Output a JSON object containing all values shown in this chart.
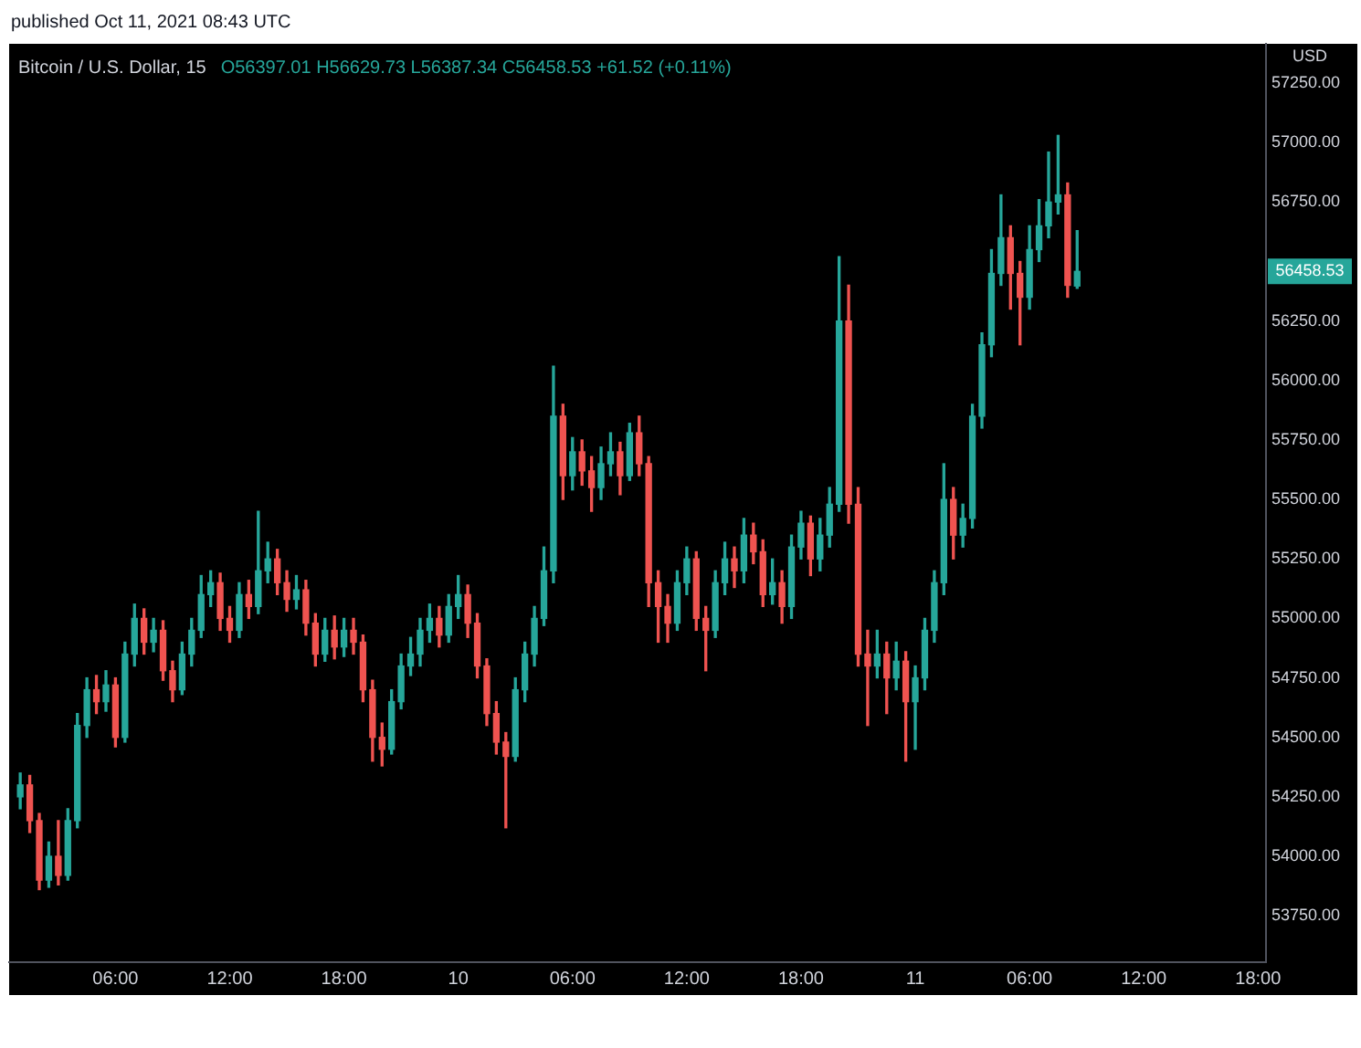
{
  "chart_data": {
    "type": "candlestick",
    "title": "Bitcoin / U.S. Dollar, 15",
    "ylabel": "USD",
    "annotations": [
      "published Oct 11, 2021 08:43 UTC",
      "O56397.01 H56629.73 L56387.34 C56458.53 +61.52 (+0.11%)",
      "56458.53"
    ],
    "x": [
      "2021-10-09T01:00",
      "2021-10-09T01:30",
      "2021-10-09T02:00",
      "2021-10-09T02:30",
      "2021-10-09T03:00",
      "2021-10-09T03:30",
      "2021-10-09T04:00",
      "2021-10-09T04:30",
      "2021-10-09T05:00",
      "2021-10-09T05:30",
      "2021-10-09T06:00",
      "2021-10-09T06:30",
      "2021-10-09T07:00",
      "2021-10-09T07:30",
      "2021-10-09T08:00",
      "2021-10-09T08:30",
      "2021-10-09T09:00",
      "2021-10-09T09:30",
      "2021-10-09T10:00",
      "2021-10-09T10:30",
      "2021-10-09T11:00",
      "2021-10-09T11:30",
      "2021-10-09T12:00",
      "2021-10-09T12:30",
      "2021-10-09T13:00",
      "2021-10-09T13:30",
      "2021-10-09T14:00",
      "2021-10-09T14:30",
      "2021-10-09T15:00",
      "2021-10-09T15:30",
      "2021-10-09T16:00",
      "2021-10-09T16:30",
      "2021-10-09T17:00",
      "2021-10-09T17:30",
      "2021-10-09T18:00",
      "2021-10-09T18:30",
      "2021-10-09T19:00",
      "2021-10-09T19:30",
      "2021-10-09T20:00",
      "2021-10-09T20:30",
      "2021-10-09T21:00",
      "2021-10-09T21:30",
      "2021-10-09T22:00",
      "2021-10-09T22:30",
      "2021-10-09T23:00",
      "2021-10-09T23:30",
      "2021-10-10T00:00",
      "2021-10-10T00:30",
      "2021-10-10T01:00",
      "2021-10-10T01:30",
      "2021-10-10T02:00",
      "2021-10-10T02:30",
      "2021-10-10T03:00",
      "2021-10-10T03:30",
      "2021-10-10T04:00",
      "2021-10-10T04:30",
      "2021-10-10T05:00",
      "2021-10-10T05:30",
      "2021-10-10T06:00",
      "2021-10-10T06:30",
      "2021-10-10T07:00",
      "2021-10-10T07:30",
      "2021-10-10T08:00",
      "2021-10-10T08:30",
      "2021-10-10T09:00",
      "2021-10-10T09:30",
      "2021-10-10T10:00",
      "2021-10-10T10:30",
      "2021-10-10T11:00",
      "2021-10-10T11:30",
      "2021-10-10T12:00",
      "2021-10-10T12:30",
      "2021-10-10T13:00",
      "2021-10-10T13:30",
      "2021-10-10T14:00",
      "2021-10-10T14:30",
      "2021-10-10T15:00",
      "2021-10-10T15:30",
      "2021-10-10T16:00",
      "2021-10-10T16:30",
      "2021-10-10T17:00",
      "2021-10-10T17:30",
      "2021-10-10T18:00",
      "2021-10-10T18:30",
      "2021-10-10T19:00",
      "2021-10-10T19:30",
      "2021-10-10T20:00",
      "2021-10-10T20:30",
      "2021-10-10T21:00",
      "2021-10-10T21:30",
      "2021-10-10T22:00",
      "2021-10-10T22:30",
      "2021-10-10T23:00",
      "2021-10-10T23:30",
      "2021-10-11T00:00",
      "2021-10-11T00:30",
      "2021-10-11T01:00",
      "2021-10-11T01:30",
      "2021-10-11T02:00",
      "2021-10-11T02:30",
      "2021-10-11T03:00",
      "2021-10-11T03:30",
      "2021-10-11T04:00",
      "2021-10-11T04:30",
      "2021-10-11T05:00",
      "2021-10-11T05:30",
      "2021-10-11T06:00",
      "2021-10-11T06:30",
      "2021-10-11T07:00",
      "2021-10-11T07:30",
      "2021-10-11T08:00",
      "2021-10-11T08:30"
    ],
    "ohlc": [
      [
        54250,
        54350,
        54200,
        54300
      ],
      [
        54300,
        54340,
        54100,
        54150
      ],
      [
        54150,
        54180,
        53860,
        53900
      ],
      [
        53900,
        54060,
        53870,
        54000
      ],
      [
        54000,
        54150,
        53880,
        53920
      ],
      [
        53920,
        54200,
        53900,
        54150
      ],
      [
        54150,
        54600,
        54120,
        54550
      ],
      [
        54550,
        54750,
        54500,
        54700
      ],
      [
        54700,
        54760,
        54600,
        54650
      ],
      [
        54650,
        54780,
        54610,
        54720
      ],
      [
        54720,
        54750,
        54460,
        54500
      ],
      [
        54500,
        54900,
        54480,
        54850
      ],
      [
        54850,
        55060,
        54800,
        55000
      ],
      [
        55000,
        55040,
        54850,
        54900
      ],
      [
        54900,
        55000,
        54860,
        54950
      ],
      [
        54950,
        54990,
        54740,
        54780
      ],
      [
        54780,
        54820,
        54650,
        54700
      ],
      [
        54700,
        54900,
        54680,
        54850
      ],
      [
        54850,
        55000,
        54800,
        54950
      ],
      [
        54950,
        55180,
        54920,
        55100
      ],
      [
        55100,
        55200,
        55050,
        55150
      ],
      [
        55150,
        55190,
        54950,
        55000
      ],
      [
        55000,
        55050,
        54900,
        54950
      ],
      [
        54950,
        55150,
        54920,
        55100
      ],
      [
        55100,
        55160,
        55000,
        55050
      ],
      [
        55050,
        55450,
        55020,
        55200
      ],
      [
        55200,
        55320,
        55150,
        55250
      ],
      [
        55250,
        55290,
        55100,
        55150
      ],
      [
        55150,
        55200,
        55030,
        55080
      ],
      [
        55080,
        55180,
        55040,
        55120
      ],
      [
        55120,
        55160,
        54930,
        54980
      ],
      [
        54980,
        55020,
        54800,
        54850
      ],
      [
        54850,
        55000,
        54820,
        54950
      ],
      [
        54950,
        55010,
        54830,
        54880
      ],
      [
        54880,
        55000,
        54840,
        54950
      ],
      [
        54950,
        55000,
        54850,
        54900
      ],
      [
        54900,
        54930,
        54650,
        54700
      ],
      [
        54700,
        54740,
        54400,
        54500
      ],
      [
        54500,
        54560,
        54380,
        54450
      ],
      [
        54450,
        54700,
        54430,
        54650
      ],
      [
        54650,
        54850,
        54620,
        54800
      ],
      [
        54800,
        54920,
        54760,
        54850
      ],
      [
        54850,
        55000,
        54800,
        54950
      ],
      [
        54950,
        55060,
        54900,
        55000
      ],
      [
        55000,
        55050,
        54880,
        54930
      ],
      [
        54930,
        55100,
        54900,
        55050
      ],
      [
        55050,
        55180,
        55000,
        55100
      ],
      [
        55100,
        55140,
        54920,
        54980
      ],
      [
        54980,
        55020,
        54750,
        54800
      ],
      [
        54800,
        54830,
        54550,
        54600
      ],
      [
        54600,
        54650,
        54430,
        54480
      ],
      [
        54480,
        54520,
        54120,
        54420
      ],
      [
        54420,
        54750,
        54400,
        54700
      ],
      [
        54700,
        54900,
        54650,
        54850
      ],
      [
        54850,
        55050,
        54800,
        55000
      ],
      [
        55000,
        55300,
        54970,
        55200
      ],
      [
        55200,
        56060,
        55150,
        55850
      ],
      [
        55850,
        55900,
        55500,
        55600
      ],
      [
        55600,
        55760,
        55540,
        55700
      ],
      [
        55700,
        55750,
        55560,
        55620
      ],
      [
        55620,
        55680,
        55450,
        55550
      ],
      [
        55550,
        55720,
        55500,
        55650
      ],
      [
        55650,
        55780,
        55600,
        55700
      ],
      [
        55700,
        55740,
        55520,
        55600
      ],
      [
        55600,
        55820,
        55580,
        55780
      ],
      [
        55780,
        55850,
        55600,
        55650
      ],
      [
        55650,
        55680,
        55050,
        55150
      ],
      [
        55150,
        55200,
        54900,
        55050
      ],
      [
        55050,
        55100,
        54900,
        54980
      ],
      [
        54980,
        55200,
        54950,
        55150
      ],
      [
        55150,
        55300,
        55100,
        55250
      ],
      [
        55250,
        55280,
        54950,
        55000
      ],
      [
        55000,
        55050,
        54780,
        54950
      ],
      [
        54950,
        55200,
        54920,
        55150
      ],
      [
        55150,
        55320,
        55100,
        55250
      ],
      [
        55250,
        55300,
        55130,
        55200
      ],
      [
        55200,
        55420,
        55150,
        55350
      ],
      [
        55350,
        55400,
        55230,
        55280
      ],
      [
        55280,
        55330,
        55050,
        55100
      ],
      [
        55100,
        55250,
        55060,
        55150
      ],
      [
        55150,
        55200,
        54980,
        55050
      ],
      [
        55050,
        55350,
        55000,
        55300
      ],
      [
        55300,
        55450,
        55250,
        55400
      ],
      [
        55400,
        55430,
        55180,
        55250
      ],
      [
        55250,
        55420,
        55200,
        55350
      ],
      [
        55350,
        55550,
        55300,
        55480
      ],
      [
        55480,
        56520,
        55450,
        56250
      ],
      [
        56250,
        56400,
        55400,
        55480
      ],
      [
        55480,
        55550,
        54800,
        54850
      ],
      [
        54850,
        54950,
        54550,
        54800
      ],
      [
        54800,
        54950,
        54750,
        54850
      ],
      [
        54850,
        54900,
        54600,
        54750
      ],
      [
        54750,
        54900,
        54700,
        54820
      ],
      [
        54820,
        54860,
        54400,
        54650
      ],
      [
        54650,
        54800,
        54450,
        54750
      ],
      [
        54750,
        55000,
        54700,
        54950
      ],
      [
        54950,
        55200,
        54900,
        55150
      ],
      [
        55150,
        55650,
        55100,
        55500
      ],
      [
        55500,
        55550,
        55250,
        55350
      ],
      [
        55350,
        55480,
        55300,
        55420
      ],
      [
        55420,
        55900,
        55380,
        55850
      ],
      [
        55850,
        56200,
        55800,
        56150
      ],
      [
        56150,
        56550,
        56100,
        56450
      ],
      [
        56450,
        56780,
        56400,
        56600
      ],
      [
        56600,
        56650,
        56300,
        56450
      ],
      [
        56450,
        56500,
        56150,
        56350
      ],
      [
        56350,
        56650,
        56300,
        56550
      ],
      [
        56550,
        56760,
        56500,
        56650
      ],
      [
        56650,
        56960,
        56600,
        56750
      ],
      [
        56750,
        57030,
        56700,
        56780
      ],
      [
        56780,
        56830,
        56350,
        56400
      ],
      [
        56397.01,
        56629.73,
        56387.34,
        56458.53
      ]
    ],
    "colors": [
      "#26a69a",
      "#ef5350",
      "#ef5350",
      "#26a69a",
      "#ef5350",
      "#26a69a",
      "#26a69a",
      "#26a69a",
      "#ef5350",
      "#26a69a",
      "#ef5350",
      "#26a69a",
      "#26a69a",
      "#ef5350",
      "#26a69a",
      "#ef5350",
      "#ef5350",
      "#26a69a",
      "#26a69a",
      "#26a69a",
      "#26a69a",
      "#ef5350",
      "#ef5350",
      "#26a69a",
      "#ef5350",
      "#26a69a",
      "#26a69a",
      "#ef5350",
      "#ef5350",
      "#26a69a",
      "#ef5350",
      "#ef5350",
      "#26a69a",
      "#ef5350",
      "#26a69a",
      "#ef5350",
      "#ef5350",
      "#ef5350",
      "#ef5350",
      "#26a69a",
      "#26a69a",
      "#26a69a",
      "#26a69a",
      "#26a69a",
      "#ef5350",
      "#26a69a",
      "#26a69a",
      "#ef5350",
      "#ef5350",
      "#ef5350",
      "#ef5350",
      "#ef5350",
      "#26a69a",
      "#26a69a",
      "#26a69a",
      "#26a69a",
      "#26a69a",
      "#ef5350",
      "#26a69a",
      "#ef5350",
      "#ef5350",
      "#26a69a",
      "#26a69a",
      "#ef5350",
      "#26a69a",
      "#ef5350",
      "#ef5350",
      "#ef5350",
      "#ef5350",
      "#26a69a",
      "#26a69a",
      "#ef5350",
      "#ef5350",
      "#26a69a",
      "#26a69a",
      "#ef5350",
      "#26a69a",
      "#ef5350",
      "#ef5350",
      "#26a69a",
      "#ef5350",
      "#26a69a",
      "#26a69a",
      "#ef5350",
      "#26a69a",
      "#26a69a",
      "#26a69a",
      "#ef5350",
      "#ef5350",
      "#ef5350",
      "#26a69a",
      "#ef5350",
      "#26a69a",
      "#ef5350",
      "#26a69a",
      "#26a69a",
      "#26a69a",
      "#26a69a",
      "#ef5350",
      "#26a69a",
      "#26a69a",
      "#26a69a",
      "#26a69a",
      "#26a69a",
      "#ef5350",
      "#ef5350",
      "#26a69a",
      "#26a69a",
      "#26a69a",
      "#26a69a",
      "#ef5350",
      "#26a69a"
    ],
    "xlim": [
      "2021-10-09T00:25",
      "2021-10-11T18:25"
    ],
    "xticks": [
      {
        "value": "2021-10-09T06:00",
        "label": "06:00"
      },
      {
        "value": "2021-10-09T12:00",
        "label": "12:00"
      },
      {
        "value": "2021-10-09T18:00",
        "label": "18:00"
      },
      {
        "value": "2021-10-10T00:00",
        "label": "10"
      },
      {
        "value": "2021-10-10T06:00",
        "label": "06:00"
      },
      {
        "value": "2021-10-10T12:00",
        "label": "12:00"
      },
      {
        "value": "2021-10-10T18:00",
        "label": "18:00"
      },
      {
        "value": "2021-10-11T00:00",
        "label": "11"
      },
      {
        "value": "2021-10-11T06:00",
        "label": "06:00"
      },
      {
        "value": "2021-10-11T12:00",
        "label": "12:00"
      },
      {
        "value": "2021-10-11T18:00",
        "label": "18:00"
      }
    ],
    "ylim": [
      53555,
      57415
    ],
    "yticks": [
      {
        "value": 53750,
        "label": "53750.00"
      },
      {
        "value": 54000,
        "label": "54000.00"
      },
      {
        "value": 54250,
        "label": "54250.00"
      },
      {
        "value": 54500,
        "label": "54500.00"
      },
      {
        "value": 54750,
        "label": "54750.00"
      },
      {
        "value": 55000,
        "label": "55000.00"
      },
      {
        "value": 55250,
        "label": "55250.00"
      },
      {
        "value": 55500,
        "label": "55500.00"
      },
      {
        "value": 55750,
        "label": "55750.00"
      },
      {
        "value": 56000,
        "label": "56000.00"
      },
      {
        "value": 56250,
        "label": "56250.00"
      },
      {
        "value": 56750,
        "label": "56750.00"
      },
      {
        "value": 57000,
        "label": "57000.00"
      },
      {
        "value": 57250,
        "label": "57250.00"
      }
    ],
    "grid": false,
    "legend": false
  }
}
